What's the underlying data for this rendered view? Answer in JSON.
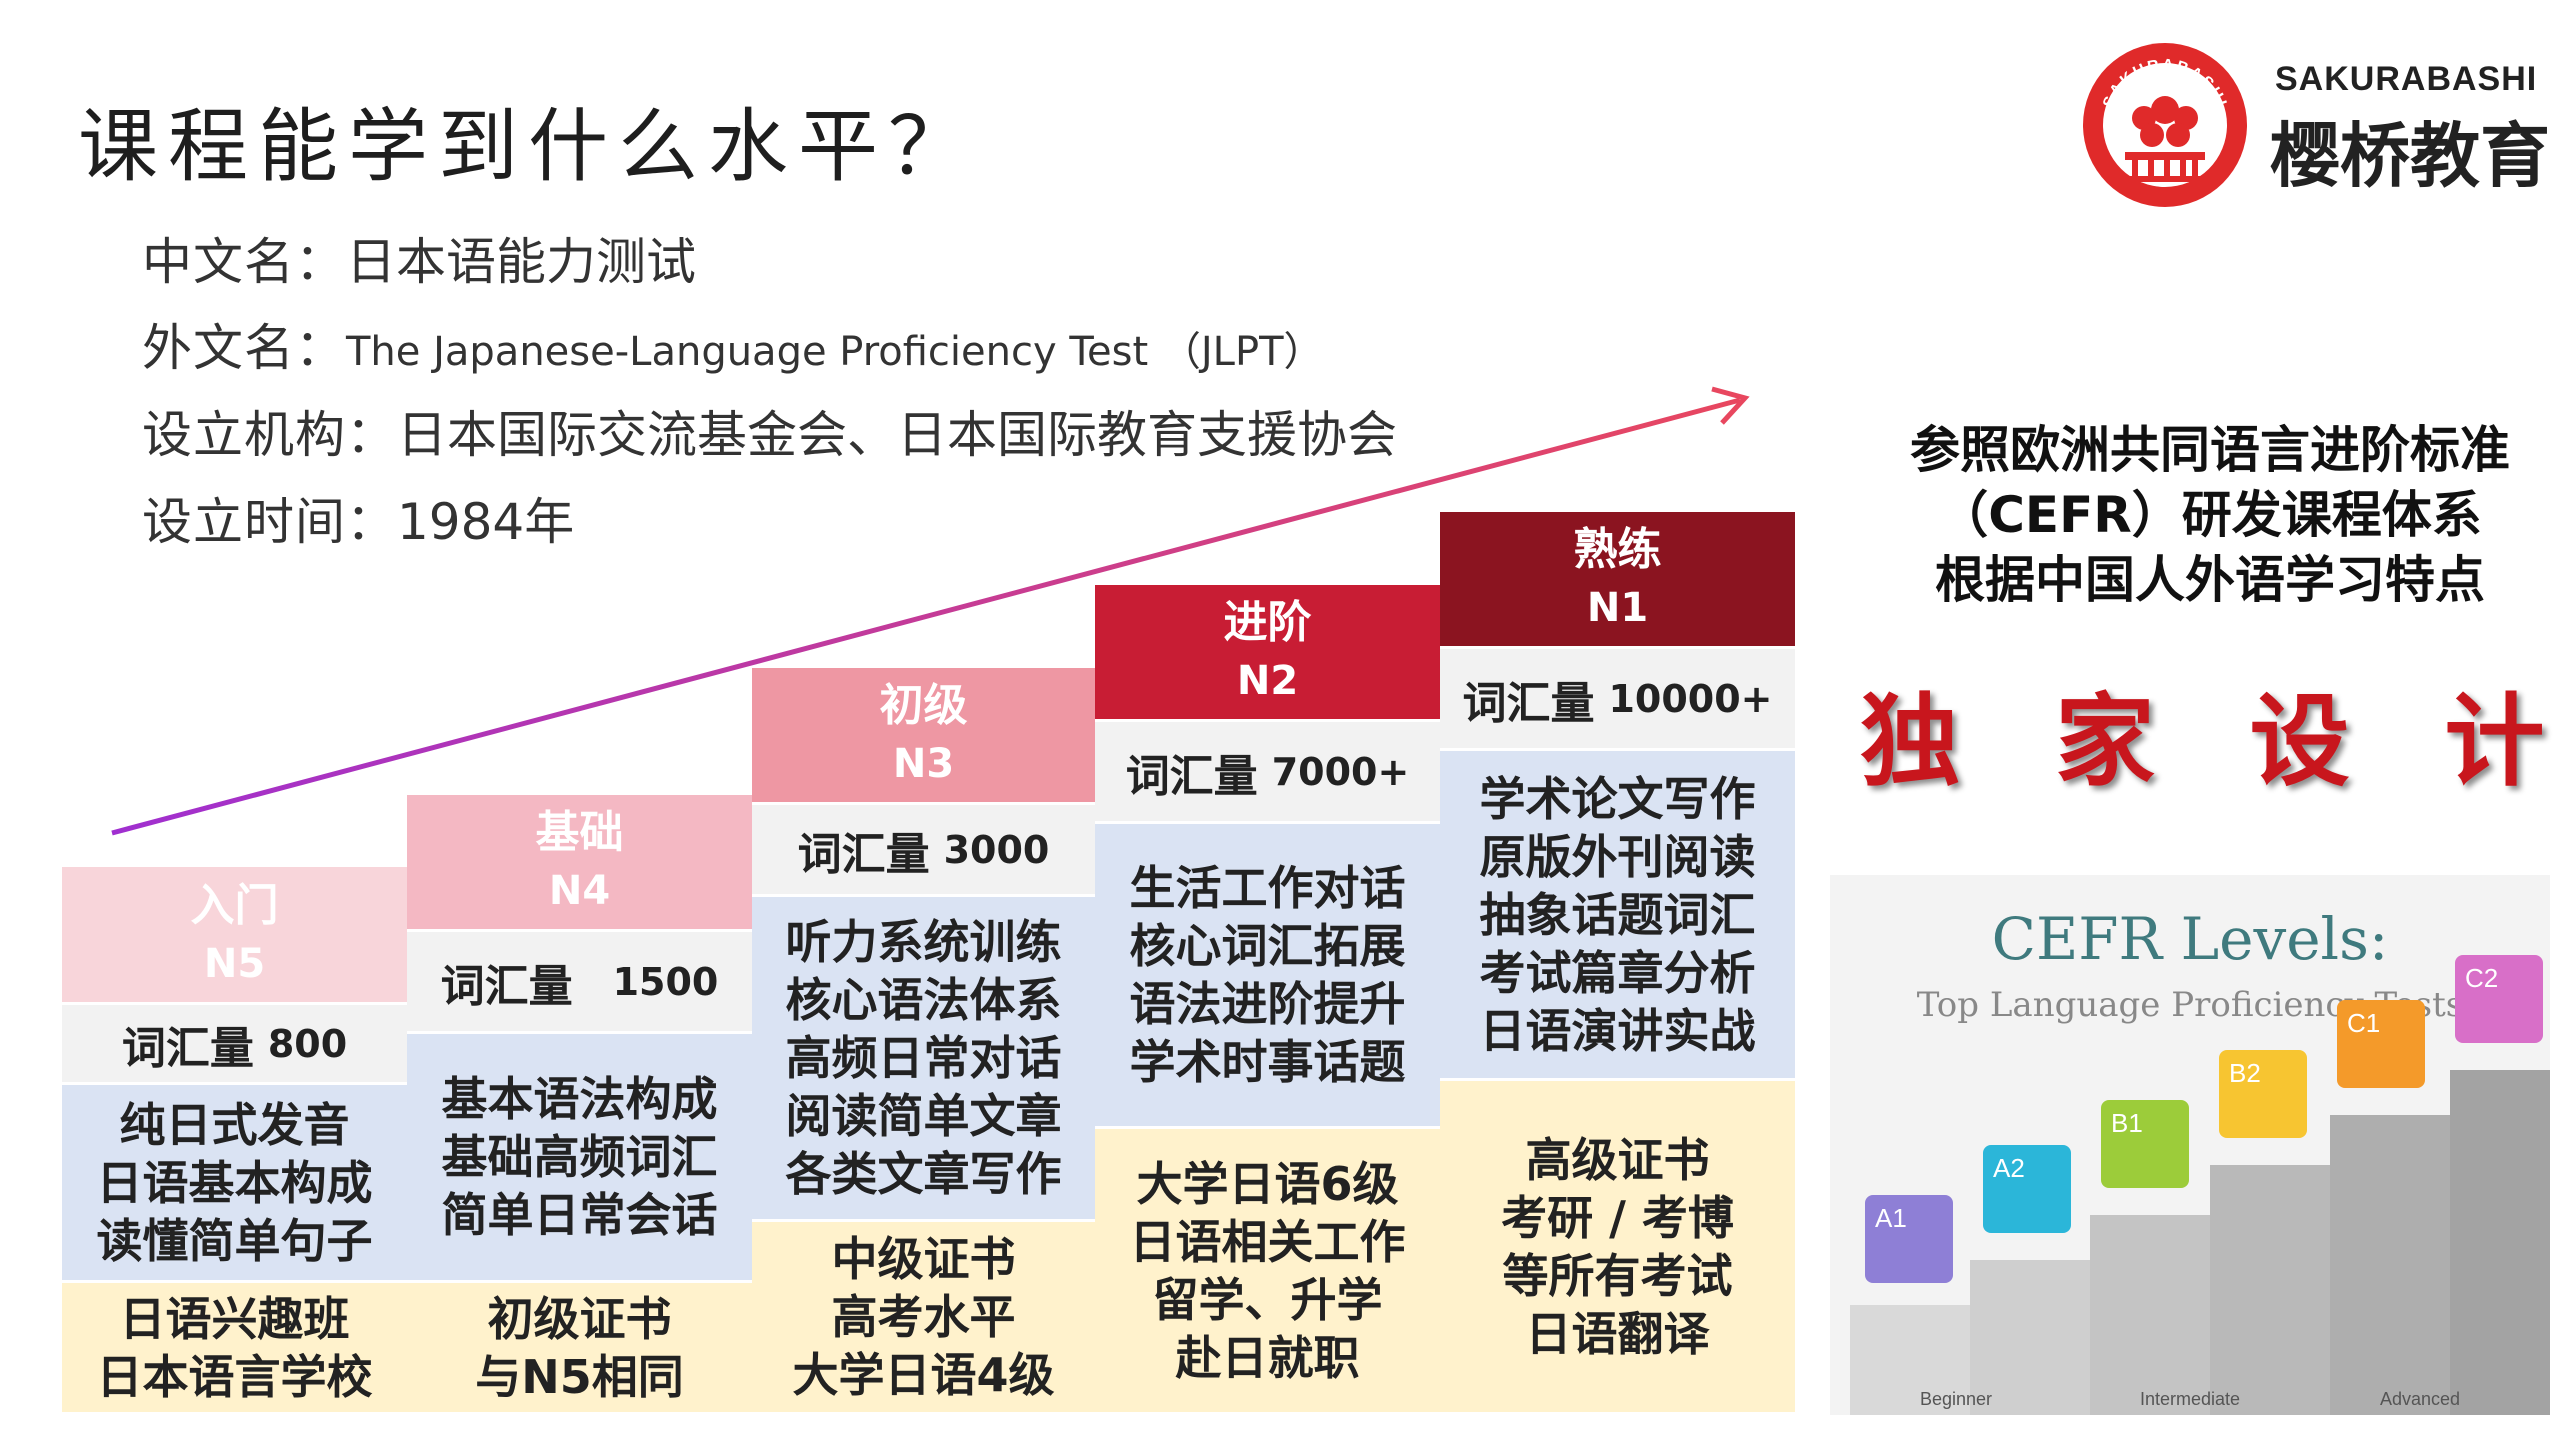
{
  "title": "课程能学到什么水平？",
  "info": [
    {
      "key": "中文名：",
      "value": "日本语能力测试"
    },
    {
      "key": "外文名：",
      "value": "The Japanese-Language Proficiency Test （JLPT）"
    },
    {
      "key": "设立机构：",
      "value": "日本国际交流基金会、日本国际教育支援协会"
    },
    {
      "key": "设立时间：",
      "value": "1984年"
    }
  ],
  "logo": {
    "ring_text": "SAKURABASHI",
    "name_en": "SAKURABASHI",
    "name_cn": "樱桥教育",
    "color": "#e02a2a"
  },
  "right_text": {
    "line1": "参照欧洲共同语言进阶标准",
    "line2": "（CEFR）研发课程体系",
    "line3": "根据中国人外语学习特点",
    "exclusive": "独 家 设 计"
  },
  "cefr_image": {
    "title": "CEFR Levels:",
    "subtitle": "Top Language Proficiency Tests",
    "levels": [
      "A1",
      "A2",
      "B1",
      "B2",
      "C1",
      "C2"
    ],
    "colors": [
      "#8e7fd6",
      "#2bb6d9",
      "#9ccc3a",
      "#f7c531",
      "#f49a2a",
      "#d86fc8"
    ],
    "bands": [
      "Beginner",
      "Intermediate",
      "Advanced"
    ]
  },
  "levels": [
    {
      "name": "入门",
      "level": "N5",
      "vocab_label": "词汇量",
      "vocab_value": "800",
      "skills": [
        "纯日式发音",
        "日语基本构成",
        "读懂简单句子"
      ],
      "certs": [
        "日语兴趣班",
        "日本语言学校"
      ],
      "color": "#f8d5da"
    },
    {
      "name": "基础",
      "level": "N4",
      "vocab_label": "词汇量",
      "vocab_value": "1500",
      "skills": [
        "基本语法构成",
        "基础高频词汇",
        "简单日常会话"
      ],
      "certs": [
        "初级证书",
        "与N5相同"
      ],
      "color": "#f4b8c3"
    },
    {
      "name": "初级",
      "level": "N3",
      "vocab_label": "词汇量",
      "vocab_value": "3000",
      "skills": [
        "听力系统训练",
        "核心语法体系",
        "高频日常对话",
        "阅读简单文章",
        "各类文章写作"
      ],
      "certs": [
        "中级证书",
        "高考水平",
        "大学日语4级"
      ],
      "color": "#ee97a3"
    },
    {
      "name": "进阶",
      "level": "N2",
      "vocab_label": "词汇量",
      "vocab_value": "7000+",
      "skills": [
        "生活工作对话",
        "核心词汇拓展",
        "语法进阶提升",
        "学术时事话题"
      ],
      "certs": [
        "大学日语6级",
        "日语相关工作",
        "留学、升学",
        "赴日就职"
      ],
      "color": "#c81d34"
    },
    {
      "name": "熟练",
      "level": "N1",
      "vocab_label": "词汇量",
      "vocab_value": "10000+",
      "skills": [
        "学术论文写作",
        "原版外刊阅读",
        "抽象话题词汇",
        "考试篇章分析",
        "日语演讲实战"
      ],
      "certs": [
        "高级证书",
        "考研 / 考博",
        "等所有考试",
        "日语翻译"
      ],
      "color": "#8b1420"
    }
  ]
}
